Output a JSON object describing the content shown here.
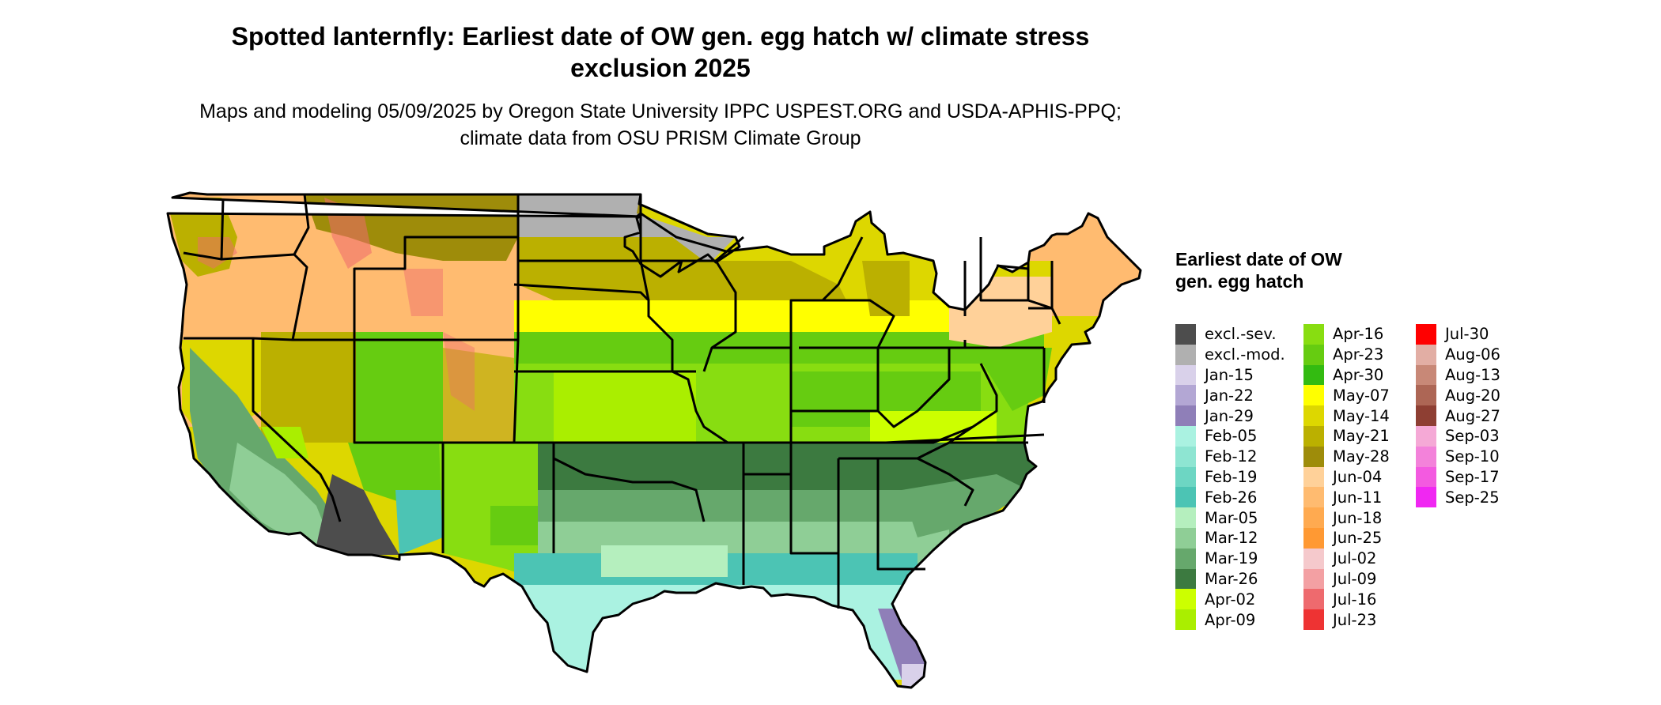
{
  "title": "Spotted lanternfly: Earliest date of OW gen. egg hatch w/ climate stress exclusion 2025",
  "subtitle": "Maps and modeling 05/09/2025 by Oregon State University IPPC USPEST.ORG and USDA-APHIS-PPQ; climate data from OSU PRISM Climate Group",
  "legend": {
    "title": "Earliest date of OW gen. egg hatch",
    "columns": [
      [
        {
          "label": "excl.-sev.",
          "color": "#4d4d4d"
        },
        {
          "label": "excl.-mod.",
          "color": "#b0b0b0"
        },
        {
          "label": "Jan-15",
          "color": "#d9d1ea"
        },
        {
          "label": "Jan-22",
          "color": "#b3a7d4"
        },
        {
          "label": "Jan-29",
          "color": "#8f7fb8"
        },
        {
          "label": "Feb-05",
          "color": "#aaf2e1"
        },
        {
          "label": "Feb-12",
          "color": "#8ee5d2"
        },
        {
          "label": "Feb-19",
          "color": "#6dd6c3"
        },
        {
          "label": "Feb-26",
          "color": "#4cc4b4"
        },
        {
          "label": "Mar-05",
          "color": "#b5efbe"
        },
        {
          "label": "Mar-12",
          "color": "#8fce96"
        },
        {
          "label": "Mar-19",
          "color": "#66a86c"
        },
        {
          "label": "Mar-26",
          "color": "#3c7a40"
        },
        {
          "label": "Apr-02",
          "color": "#ccff00"
        },
        {
          "label": "Apr-09",
          "color": "#aaee00"
        }
      ],
      [
        {
          "label": "Apr-16",
          "color": "#88dd11"
        },
        {
          "label": "Apr-23",
          "color": "#66cc11"
        },
        {
          "label": "Apr-30",
          "color": "#33bb11"
        },
        {
          "label": "May-07",
          "color": "#ffff00"
        },
        {
          "label": "May-14",
          "color": "#ddd700"
        },
        {
          "label": "May-21",
          "color": "#bbb000"
        },
        {
          "label": "May-28",
          "color": "#9e8c0a"
        },
        {
          "label": "Jun-04",
          "color": "#ffd199"
        },
        {
          "label": "Jun-11",
          "color": "#ffbb70"
        },
        {
          "label": "Jun-18",
          "color": "#ffaa50"
        },
        {
          "label": "Jun-25",
          "color": "#ff9933"
        },
        {
          "label": "Jul-02",
          "color": "#f5c9cc"
        },
        {
          "label": "Jul-09",
          "color": "#f3a0a3"
        },
        {
          "label": "Jul-16",
          "color": "#ee6a6e"
        },
        {
          "label": "Jul-23",
          "color": "#ee3333"
        }
      ],
      [
        {
          "label": "Jul-30",
          "color": "#ff0000"
        },
        {
          "label": "Aug-06",
          "color": "#e2aea4"
        },
        {
          "label": "Aug-13",
          "color": "#c88877"
        },
        {
          "label": "Aug-20",
          "color": "#ad6655"
        },
        {
          "label": "Aug-27",
          "color": "#8e3f33"
        },
        {
          "label": "Sep-03",
          "color": "#f5a9d6"
        },
        {
          "label": "Sep-10",
          "color": "#f382da"
        },
        {
          "label": "Sep-17",
          "color": "#f35ae0"
        },
        {
          "label": "Sep-25",
          "color": "#f027f2"
        }
      ]
    ]
  }
}
